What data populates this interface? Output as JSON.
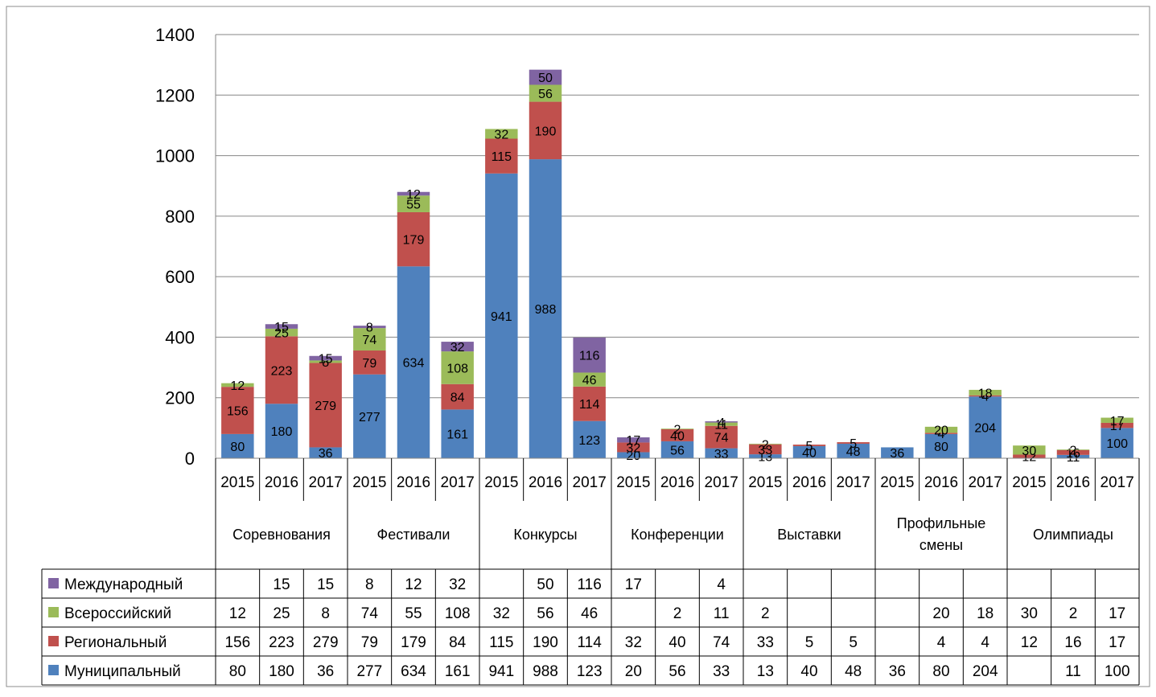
{
  "chart_data": {
    "type": "bar",
    "stacked": true,
    "groups": [
      "Соревнования",
      "Фестивали",
      "Конкурсы",
      "Конференции",
      "Выставки",
      "Профильные смены",
      "Олимпиады"
    ],
    "years": [
      "2015",
      "2016",
      "2017"
    ],
    "categories": [
      "Соревнования 2015",
      "Соревнования 2016",
      "Соревнования 2017",
      "Фестивали 2015",
      "Фестивали 2016",
      "Фестивали 2017",
      "Конкурсы 2015",
      "Конкурсы 2016",
      "Конкурсы 2017",
      "Конференции 2015",
      "Конференции 2016",
      "Конференции 2017",
      "Выставки 2015",
      "Выставки 2016",
      "Выставки 2017",
      "Профильные смены 2015",
      "Профильные смены 2016",
      "Профильные смены 2017",
      "Олимпиады 2015",
      "Олимпиады 2016",
      "Олимпиады 2017"
    ],
    "series": [
      {
        "name": "Муниципальный",
        "color": "#4f81bd",
        "values": [
          80,
          180,
          36,
          277,
          634,
          161,
          941,
          988,
          123,
          20,
          56,
          33,
          13,
          40,
          48,
          36,
          80,
          204,
          null,
          11,
          100
        ]
      },
      {
        "name": "Региональный",
        "color": "#c0504d",
        "values": [
          156,
          223,
          279,
          79,
          179,
          84,
          115,
          190,
          114,
          32,
          40,
          74,
          33,
          5,
          5,
          null,
          4,
          4,
          12,
          16,
          17
        ]
      },
      {
        "name": "Всероссийский",
        "color": "#9bbb59",
        "values": [
          12,
          25,
          8,
          74,
          55,
          108,
          32,
          56,
          46,
          null,
          2,
          11,
          2,
          null,
          null,
          null,
          20,
          18,
          30,
          2,
          17
        ]
      },
      {
        "name": "Международный",
        "color": "#8064a2",
        "values": [
          null,
          15,
          15,
          8,
          12,
          32,
          null,
          50,
          116,
          17,
          null,
          4,
          null,
          null,
          null,
          null,
          null,
          null,
          null,
          null,
          null
        ]
      }
    ],
    "ylim": [
      0,
      1400
    ],
    "yticks": [
      0,
      200,
      400,
      600,
      800,
      1000,
      1200,
      1400
    ],
    "grid": true,
    "legend": "data-table-left",
    "data_table": true,
    "title": "",
    "xlabel": "",
    "ylabel": ""
  }
}
